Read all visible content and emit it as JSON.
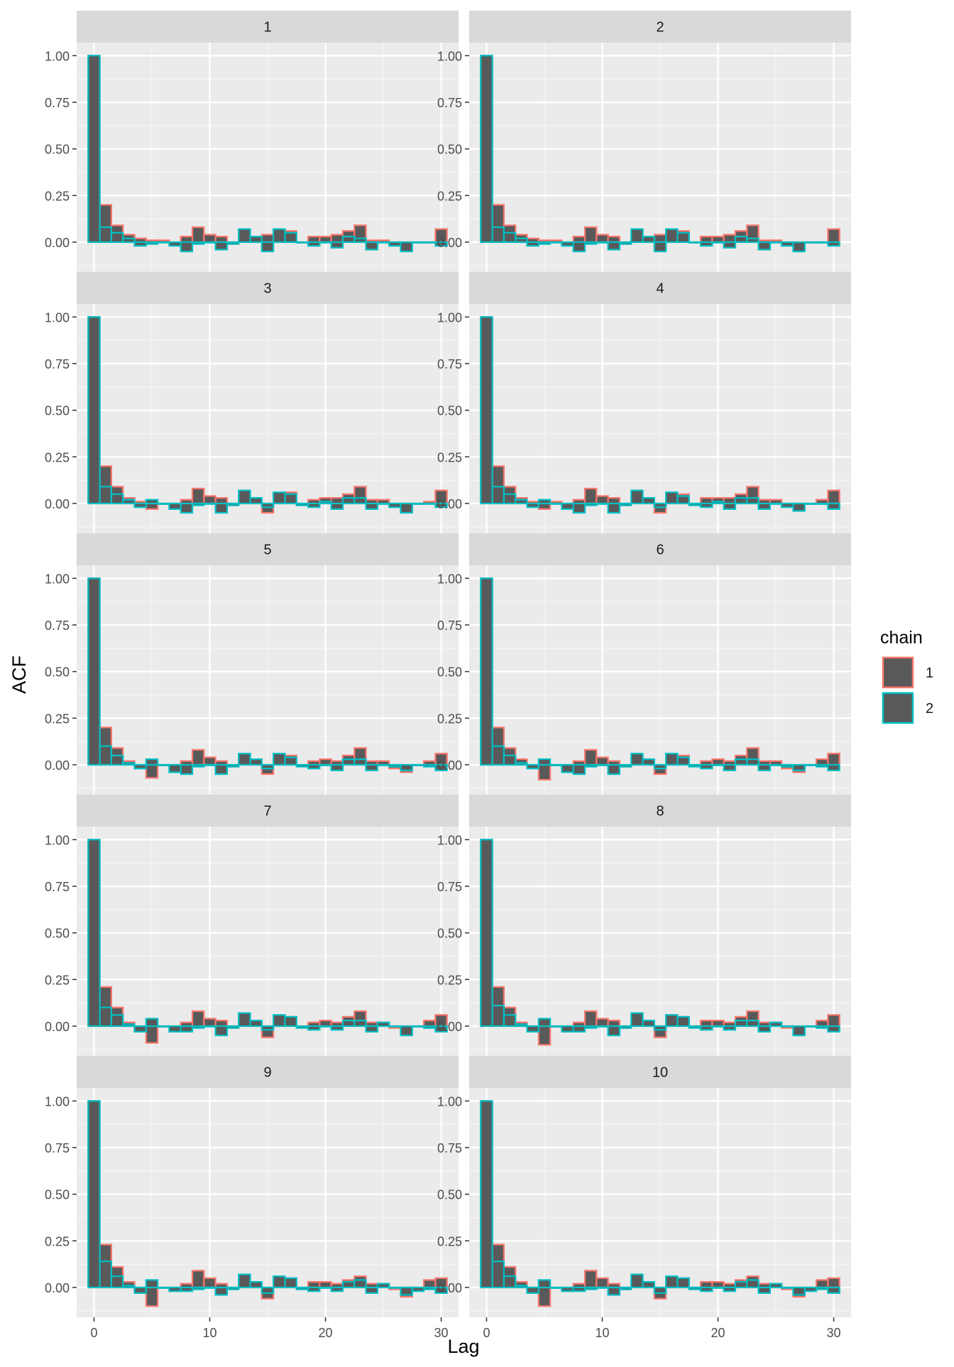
{
  "chart_data": {
    "type": "bar",
    "title": "",
    "xlabel": "Lag",
    "ylabel": "ACF",
    "x_ticks": [
      0,
      10,
      20,
      30
    ],
    "y_ticks": [
      "0.00",
      "0.25",
      "0.50",
      "0.75",
      "1.00"
    ],
    "xlim": [
      -1.5,
      31.5
    ],
    "ylim": [
      -0.16,
      1.07
    ],
    "lags": [
      0,
      1,
      2,
      3,
      4,
      5,
      6,
      7,
      8,
      9,
      10,
      11,
      12,
      13,
      14,
      15,
      16,
      17,
      18,
      19,
      20,
      21,
      22,
      23,
      24,
      25,
      26,
      27,
      28,
      29,
      30
    ],
    "legend": {
      "title": "chain",
      "position": "right",
      "entries": [
        "1",
        "2"
      ],
      "colors": [
        "#F8766D",
        "#00BFC4"
      ]
    },
    "bar_fill": "#595959",
    "panels": [
      {
        "label": "1",
        "series": [
          {
            "name": "1",
            "values": [
              1.0,
              0.2,
              0.09,
              0.04,
              0.02,
              0.01,
              0.01,
              -0.01,
              0.03,
              0.08,
              0.04,
              0.03,
              -0.01,
              0.03,
              0.03,
              0.04,
              0.05,
              0.06,
              0.0,
              0.03,
              0.03,
              0.04,
              0.06,
              0.09,
              0.01,
              0.01,
              -0.01,
              0.0,
              0.0,
              0.0,
              0.07
            ]
          },
          {
            "name": "2",
            "values": [
              1.0,
              0.08,
              0.05,
              0.02,
              -0.02,
              -0.01,
              0.0,
              -0.02,
              -0.05,
              -0.01,
              0.0,
              -0.04,
              -0.01,
              0.07,
              0.03,
              -0.05,
              0.07,
              0.05,
              0.0,
              -0.02,
              0.0,
              -0.03,
              0.03,
              0.02,
              -0.04,
              0.0,
              -0.02,
              -0.05,
              0.0,
              0.0,
              -0.02
            ]
          }
        ]
      },
      {
        "label": "2",
        "series": [
          {
            "name": "1",
            "values": [
              1.0,
              0.2,
              0.09,
              0.04,
              0.02,
              0.01,
              0.01,
              -0.01,
              0.03,
              0.08,
              0.04,
              0.03,
              -0.01,
              0.03,
              0.03,
              0.04,
              0.05,
              0.06,
              0.0,
              0.03,
              0.03,
              0.04,
              0.06,
              0.09,
              0.01,
              0.01,
              -0.01,
              0.0,
              0.0,
              0.0,
              0.07
            ]
          },
          {
            "name": "2",
            "values": [
              1.0,
              0.08,
              0.05,
              0.02,
              -0.02,
              -0.01,
              0.0,
              -0.02,
              -0.05,
              -0.01,
              0.0,
              -0.04,
              -0.01,
              0.07,
              0.03,
              -0.05,
              0.07,
              0.05,
              0.0,
              -0.02,
              0.0,
              -0.03,
              0.03,
              0.02,
              -0.04,
              0.0,
              -0.02,
              -0.05,
              0.0,
              0.0,
              -0.02
            ]
          }
        ]
      },
      {
        "label": "3",
        "series": [
          {
            "name": "1",
            "values": [
              1.0,
              0.2,
              0.09,
              0.03,
              0.01,
              -0.03,
              0.0,
              -0.01,
              0.02,
              0.08,
              0.04,
              0.03,
              -0.01,
              0.03,
              0.02,
              -0.05,
              0.05,
              0.06,
              0.0,
              0.02,
              0.03,
              0.03,
              0.05,
              0.09,
              0.02,
              0.02,
              -0.02,
              -0.01,
              0.0,
              0.01,
              0.07
            ]
          },
          {
            "name": "2",
            "values": [
              1.0,
              0.09,
              0.05,
              0.02,
              -0.02,
              0.02,
              0.0,
              -0.03,
              -0.05,
              -0.01,
              0.0,
              -0.05,
              -0.01,
              0.07,
              0.03,
              -0.02,
              0.06,
              0.05,
              -0.01,
              -0.02,
              0.01,
              -0.03,
              0.03,
              0.03,
              -0.03,
              0.0,
              -0.02,
              -0.05,
              0.0,
              0.0,
              -0.02
            ]
          }
        ]
      },
      {
        "label": "4",
        "series": [
          {
            "name": "1",
            "values": [
              1.0,
              0.2,
              0.09,
              0.03,
              0.01,
              -0.03,
              0.01,
              -0.01,
              0.02,
              0.08,
              0.04,
              0.03,
              -0.01,
              0.03,
              0.02,
              -0.05,
              0.05,
              0.05,
              0.0,
              0.03,
              0.03,
              0.03,
              0.05,
              0.09,
              0.02,
              0.02,
              -0.02,
              -0.01,
              0.0,
              0.02,
              0.07
            ]
          },
          {
            "name": "2",
            "values": [
              1.0,
              0.09,
              0.05,
              0.02,
              -0.02,
              0.02,
              0.0,
              -0.03,
              -0.05,
              -0.01,
              0.0,
              -0.05,
              -0.01,
              0.07,
              0.03,
              -0.02,
              0.06,
              0.04,
              -0.01,
              -0.02,
              0.01,
              -0.03,
              0.03,
              0.03,
              -0.03,
              0.0,
              -0.02,
              -0.04,
              0.0,
              0.0,
              -0.03
            ]
          }
        ]
      },
      {
        "label": "5",
        "series": [
          {
            "name": "1",
            "values": [
              1.0,
              0.2,
              0.09,
              0.02,
              0.0,
              -0.07,
              0.0,
              -0.02,
              0.02,
              0.08,
              0.04,
              0.02,
              -0.01,
              0.03,
              0.02,
              -0.05,
              0.05,
              0.05,
              0.0,
              0.02,
              0.03,
              0.02,
              0.05,
              0.09,
              0.02,
              0.02,
              -0.02,
              -0.04,
              0.0,
              0.02,
              0.06
            ]
          },
          {
            "name": "2",
            "values": [
              1.0,
              0.1,
              0.05,
              0.01,
              -0.02,
              0.03,
              0.0,
              -0.04,
              -0.05,
              -0.01,
              0.0,
              -0.05,
              -0.01,
              0.06,
              0.03,
              -0.02,
              0.06,
              0.04,
              -0.01,
              -0.02,
              0.0,
              -0.03,
              0.03,
              0.03,
              -0.03,
              0.0,
              -0.01,
              -0.03,
              0.0,
              -0.01,
              -0.03
            ]
          }
        ]
      },
      {
        "label": "6",
        "series": [
          {
            "name": "1",
            "values": [
              1.0,
              0.2,
              0.09,
              0.03,
              0.0,
              -0.08,
              0.0,
              -0.02,
              0.02,
              0.08,
              0.04,
              0.02,
              -0.01,
              0.03,
              0.02,
              -0.05,
              0.05,
              0.05,
              0.0,
              0.02,
              0.03,
              0.02,
              0.05,
              0.09,
              0.02,
              0.02,
              -0.02,
              -0.04,
              0.0,
              0.03,
              0.06
            ]
          },
          {
            "name": "2",
            "values": [
              1.0,
              0.1,
              0.05,
              0.01,
              -0.02,
              0.03,
              0.0,
              -0.04,
              -0.05,
              -0.01,
              0.0,
              -0.05,
              -0.01,
              0.06,
              0.03,
              -0.02,
              0.06,
              0.04,
              -0.01,
              -0.02,
              0.0,
              -0.03,
              0.03,
              0.03,
              -0.03,
              0.0,
              -0.01,
              -0.03,
              0.0,
              -0.01,
              -0.03
            ]
          }
        ]
      },
      {
        "label": "7",
        "series": [
          {
            "name": "1",
            "values": [
              1.0,
              0.21,
              0.1,
              0.02,
              -0.02,
              -0.09,
              0.0,
              -0.02,
              0.02,
              0.08,
              0.04,
              0.03,
              -0.01,
              0.03,
              0.02,
              -0.06,
              0.05,
              0.05,
              0.0,
              0.02,
              0.03,
              0.02,
              0.05,
              0.08,
              0.02,
              0.02,
              -0.01,
              -0.04,
              0.0,
              0.03,
              0.06
            ]
          },
          {
            "name": "2",
            "values": [
              1.0,
              0.1,
              0.06,
              0.01,
              -0.03,
              0.04,
              0.0,
              -0.03,
              -0.03,
              -0.01,
              0.0,
              -0.05,
              -0.01,
              0.07,
              0.03,
              -0.02,
              0.06,
              0.05,
              -0.01,
              -0.02,
              0.0,
              -0.02,
              0.03,
              0.03,
              -0.03,
              0.02,
              0.0,
              -0.05,
              0.0,
              -0.01,
              -0.03
            ]
          }
        ]
      },
      {
        "label": "8",
        "series": [
          {
            "name": "1",
            "values": [
              1.0,
              0.21,
              0.1,
              0.02,
              -0.02,
              -0.1,
              0.0,
              -0.02,
              0.02,
              0.08,
              0.04,
              0.03,
              -0.01,
              0.03,
              0.02,
              -0.06,
              0.05,
              0.05,
              0.0,
              0.03,
              0.03,
              0.02,
              0.05,
              0.08,
              0.02,
              0.02,
              -0.01,
              -0.04,
              0.0,
              0.03,
              0.06
            ]
          },
          {
            "name": "2",
            "values": [
              1.0,
              0.11,
              0.06,
              0.01,
              -0.03,
              0.04,
              0.0,
              -0.03,
              -0.03,
              -0.01,
              0.0,
              -0.05,
              -0.01,
              0.07,
              0.03,
              -0.02,
              0.06,
              0.05,
              -0.01,
              -0.02,
              0.0,
              -0.02,
              0.03,
              0.03,
              -0.03,
              0.02,
              0.0,
              -0.05,
              0.0,
              -0.01,
              -0.03
            ]
          }
        ]
      },
      {
        "label": "9",
        "series": [
          {
            "name": "1",
            "values": [
              1.0,
              0.23,
              0.11,
              0.03,
              -0.03,
              -0.1,
              0.0,
              -0.02,
              0.02,
              0.09,
              0.05,
              0.02,
              -0.01,
              0.03,
              0.02,
              -0.06,
              0.05,
              0.05,
              0.0,
              0.03,
              0.03,
              0.02,
              0.04,
              0.06,
              0.02,
              0.02,
              -0.01,
              -0.05,
              0.0,
              0.04,
              0.05
            ]
          },
          {
            "name": "2",
            "values": [
              1.0,
              0.14,
              0.06,
              0.01,
              -0.03,
              0.04,
              0.0,
              -0.02,
              -0.02,
              -0.01,
              0.0,
              -0.04,
              -0.01,
              0.07,
              0.03,
              -0.03,
              0.06,
              0.05,
              -0.01,
              -0.02,
              0.0,
              -0.02,
              0.03,
              0.04,
              -0.03,
              0.02,
              0.0,
              -0.04,
              -0.02,
              -0.01,
              -0.03
            ]
          }
        ]
      },
      {
        "label": "10",
        "series": [
          {
            "name": "1",
            "values": [
              1.0,
              0.23,
              0.11,
              0.03,
              -0.03,
              -0.1,
              0.0,
              -0.02,
              0.02,
              0.09,
              0.05,
              0.02,
              -0.01,
              0.03,
              0.02,
              -0.06,
              0.05,
              0.05,
              0.0,
              0.03,
              0.03,
              0.02,
              0.04,
              0.06,
              0.02,
              0.02,
              -0.01,
              -0.05,
              0.0,
              0.04,
              0.05
            ]
          },
          {
            "name": "2",
            "values": [
              1.0,
              0.14,
              0.06,
              0.01,
              -0.03,
              0.04,
              0.0,
              -0.02,
              -0.02,
              -0.01,
              0.0,
              -0.04,
              -0.01,
              0.07,
              0.03,
              -0.03,
              0.06,
              0.05,
              -0.01,
              -0.02,
              0.0,
              -0.02,
              0.03,
              0.04,
              -0.03,
              0.02,
              0.0,
              -0.04,
              -0.02,
              -0.01,
              -0.03
            ]
          }
        ]
      }
    ]
  }
}
